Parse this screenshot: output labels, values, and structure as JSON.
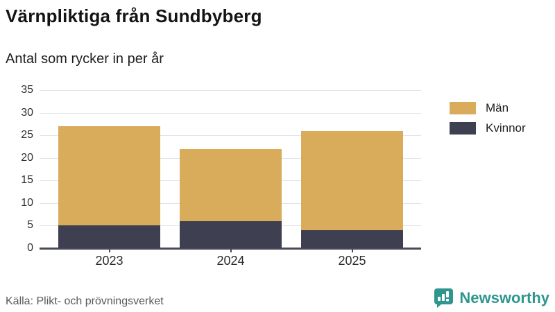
{
  "header": {
    "title": "Värnpliktiga från Sundbyberg",
    "subtitle": "Antal som rycker in per år"
  },
  "chart_data": {
    "type": "bar",
    "stacked": true,
    "categories": [
      "2023",
      "2024",
      "2025"
    ],
    "series": [
      {
        "name": "Män",
        "values": [
          22,
          16,
          22
        ],
        "color": "#d9ac5c"
      },
      {
        "name": "Kvinnor",
        "values": [
          5,
          6,
          4
        ],
        "color": "#3f3f52"
      }
    ],
    "stack_totals": [
      27,
      22,
      26
    ],
    "yticks": [
      0,
      5,
      10,
      15,
      20,
      25,
      30,
      35
    ],
    "ylim": [
      0,
      35
    ],
    "grid": "horizontal",
    "legend_position": "right",
    "title": "Värnpliktiga från Sundbyberg",
    "subtitle": "Antal som rycker in per år",
    "xlabel": "",
    "ylabel": ""
  },
  "colors": {
    "men": "#d9ac5c",
    "women": "#3f3f52",
    "gridline": "#e3e3e6",
    "axis": "#4a4a57",
    "source_text": "#595959",
    "brand_teal": "#2e968c"
  },
  "footer": {
    "source": "Källa: Plikt- och prövningsverket",
    "brand": "Newsworthy",
    "brand_icon": "bar-chart-speech-bubble-icon"
  }
}
